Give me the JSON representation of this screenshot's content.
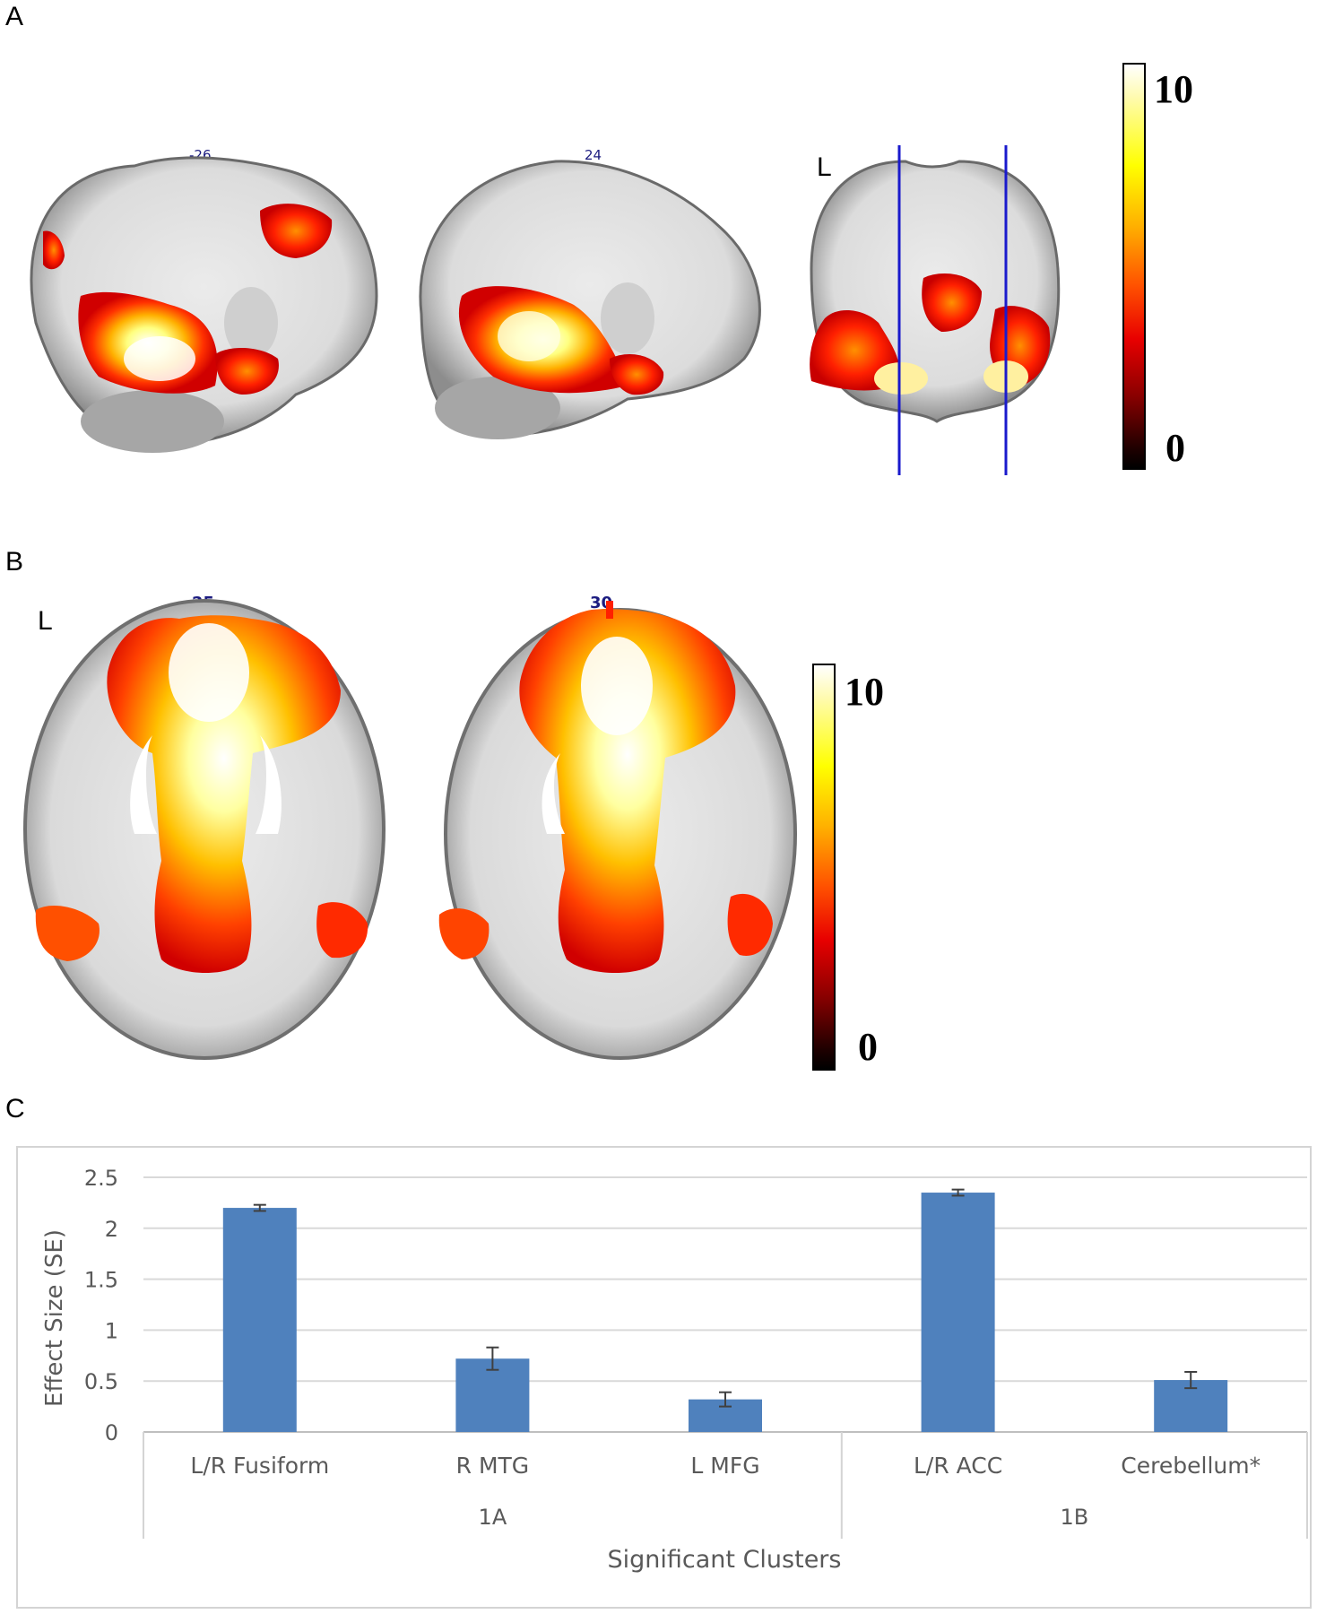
{
  "panels": {
    "a": {
      "letter": "A",
      "slices": [
        "-26",
        "24"
      ],
      "side_label": "L",
      "colorbar": {
        "max": "10",
        "min": "0"
      }
    },
    "b": {
      "letter": "B",
      "slices": [
        "25",
        "30"
      ],
      "side_label": "L",
      "colorbar": {
        "max": "10",
        "min": "0"
      }
    },
    "c": {
      "letter": "C"
    }
  },
  "colors": {
    "bar": "#4f81bd",
    "gridline": "#d9d9d9",
    "axis_text": "#595959"
  },
  "chart_data": {
    "type": "bar",
    "categories": [
      "L/R Fusiform",
      "R MTG",
      "L MFG",
      "L/R ACC",
      "Cerebellum*"
    ],
    "groups": [
      {
        "label": "1A",
        "categories": [
          "L/R Fusiform",
          "R MTG",
          "L MFG"
        ]
      },
      {
        "label": "1B",
        "categories": [
          "L/R ACC",
          "Cerebellum*"
        ]
      }
    ],
    "values": [
      2.2,
      0.72,
      0.32,
      2.35,
      0.51
    ],
    "errors": [
      0.03,
      0.11,
      0.07,
      0.03,
      0.08
    ],
    "xlabel": "Significant Clusters",
    "ylabel": "Effect Size (SE)",
    "ylim": [
      0,
      2.5
    ],
    "yticks": [
      "0",
      "0.5",
      "1",
      "1.5",
      "2",
      "2.5"
    ],
    "grid": true,
    "legend": "none"
  }
}
